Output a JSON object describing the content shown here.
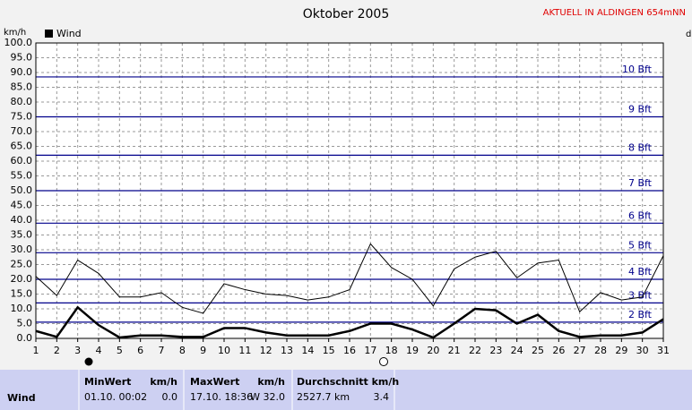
{
  "chart_data": {
    "type": "line",
    "title": "Oktober 2005",
    "subtitle": "AKTUELL IN ALDINGEN 654mNN",
    "y_unit": "km/h",
    "right_label": "d",
    "x": [
      1,
      2,
      3,
      4,
      5,
      6,
      7,
      8,
      9,
      10,
      11,
      12,
      13,
      14,
      15,
      16,
      17,
      18,
      19,
      20,
      21,
      22,
      23,
      24,
      25,
      26,
      27,
      28,
      29,
      30,
      31
    ],
    "xlim": [
      1,
      31
    ],
    "xticks": [
      1,
      2,
      3,
      4,
      5,
      6,
      7,
      8,
      9,
      10,
      11,
      12,
      13,
      14,
      15,
      16,
      17,
      18,
      19,
      20,
      21,
      22,
      23,
      24,
      25,
      26,
      27,
      28,
      29,
      30,
      31
    ],
    "ylim": [
      0,
      100
    ],
    "yticks": [
      {
        "value": 0,
        "label": "0.0"
      },
      {
        "value": 5,
        "label": "5.0"
      },
      {
        "value": 10,
        "label": "10.0"
      },
      {
        "value": 15,
        "label": "15.0"
      },
      {
        "value": 20,
        "label": "20.0"
      },
      {
        "value": 25,
        "label": "25.0"
      },
      {
        "value": 30,
        "label": "30.0"
      },
      {
        "value": 35,
        "label": "35.0"
      },
      {
        "value": 40,
        "label": "40.0"
      },
      {
        "value": 45,
        "label": "45.0"
      },
      {
        "value": 50,
        "label": "50.0"
      },
      {
        "value": 55,
        "label": "55.0"
      },
      {
        "value": 60,
        "label": "60.0"
      },
      {
        "value": 65,
        "label": "65.0"
      },
      {
        "value": 70,
        "label": "70.0"
      },
      {
        "value": 75,
        "label": "75.0"
      },
      {
        "value": 80,
        "label": "80.0"
      },
      {
        "value": 85,
        "label": "85.0"
      },
      {
        "value": 90,
        "label": "90.0"
      },
      {
        "value": 95,
        "label": "95.0"
      },
      {
        "value": 100,
        "label": "100.0"
      }
    ],
    "grid": true,
    "legend": "top-left",
    "series": [
      {
        "name": "Wind",
        "color": "#000000",
        "line_width": 2.5,
        "values": [
          2.5,
          0.5,
          10.5,
          4.5,
          0.3,
          1,
          1,
          0.5,
          0.5,
          3.5,
          3.5,
          2,
          1,
          1,
          1,
          2.5,
          5,
          5,
          3,
          0.3,
          5,
          10,
          9.5,
          5,
          8,
          2.5,
          0.5,
          1,
          1,
          2,
          6.5
        ]
      },
      {
        "color": "#000000",
        "line_width": 1,
        "values": [
          21,
          14.5,
          26.5,
          22,
          14,
          14,
          15.5,
          10.5,
          8.5,
          18.5,
          16.5,
          15,
          14.5,
          13,
          14,
          16.5,
          32,
          24,
          20,
          11,
          23.5,
          27.5,
          29.5,
          20.5,
          25.5,
          26.5,
          9,
          15.5,
          13,
          14,
          28
        ]
      }
    ],
    "reference_lines": {
      "color": "#00008b",
      "lines": [
        {
          "value": 5.5,
          "label": "2 Bft"
        },
        {
          "value": 12,
          "label": "3 Bft"
        },
        {
          "value": 20,
          "label": "4 Bft"
        },
        {
          "value": 29,
          "label": "5 Bft"
        },
        {
          "value": 39,
          "label": "6 Bft"
        },
        {
          "value": 50,
          "label": "7 Bft"
        },
        {
          "value": 62,
          "label": "8 Bft"
        },
        {
          "value": 75,
          "label": "9 Bft"
        },
        {
          "value": 88.5,
          "label": "10 Bft"
        }
      ]
    }
  },
  "stats": {
    "row_label": "Wind",
    "columns": [
      {
        "header": "MinWert",
        "unit": "km/h",
        "when": "01.10.  00:02",
        "value": "0.0"
      },
      {
        "header": "MaxWert",
        "unit": "km/h",
        "when": "17.10.  18:36",
        "value": "W 32.0"
      },
      {
        "header": "Durchschnitt km/h",
        "when": "2527.7 km",
        "value": "3.4"
      }
    ]
  }
}
